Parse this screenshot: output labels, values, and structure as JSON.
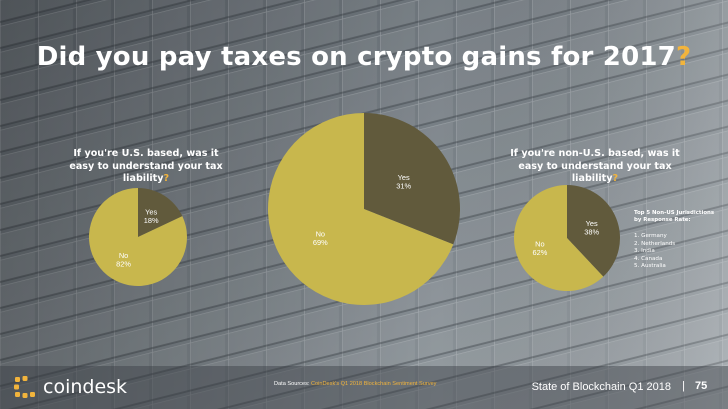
{
  "title": "Did you pay taxes on crypto gains for 2017",
  "title_qmark": "?",
  "us_question": "If you're U.S. based, was it easy to understand your tax liability",
  "nonus_question": "If you're non-U.S. based, was it easy to understand your tax liability",
  "question_mark": "?",
  "side_note": {
    "title_line1": "Top 5 Non-US Jurisdictions",
    "title_line2": "by Response Rate:",
    "items": [
      "1. Germany",
      "2. Netherlands",
      "3. India",
      "4. Canada",
      "5. Australia"
    ]
  },
  "footer": {
    "logo_text": "coindesk",
    "source_label": "Data Sources:",
    "source_value": "CoinDesk's Q1 2018 Blockchain Sentiment Survey",
    "report": "State of Blockchain Q1 2018",
    "separator": "|",
    "page_number": "75"
  },
  "colors": {
    "dark_slice": "#615a3c",
    "light_slice": "#c8b74d",
    "accent": "#f2b43c",
    "logo_accent": "#f2b43c"
  },
  "chart_data": [
    {
      "type": "pie",
      "title": "If you're U.S. based, was it easy to understand your tax liability?",
      "slices": [
        {
          "label": "Yes",
          "value": 18,
          "display": "18%"
        },
        {
          "label": "No",
          "value": 82,
          "display": "82%"
        }
      ]
    },
    {
      "type": "pie",
      "title": "Did you pay taxes on crypto gains for 2017?",
      "slices": [
        {
          "label": "Yes",
          "value": 31,
          "display": "31%"
        },
        {
          "label": "No",
          "value": 69,
          "display": "69%"
        }
      ]
    },
    {
      "type": "pie",
      "title": "If you're non-U.S. based, was it easy to understand your tax liability?",
      "slices": [
        {
          "label": "Yes",
          "value": 38,
          "display": "38%"
        },
        {
          "label": "No",
          "value": 62,
          "display": "62%"
        }
      ]
    }
  ]
}
